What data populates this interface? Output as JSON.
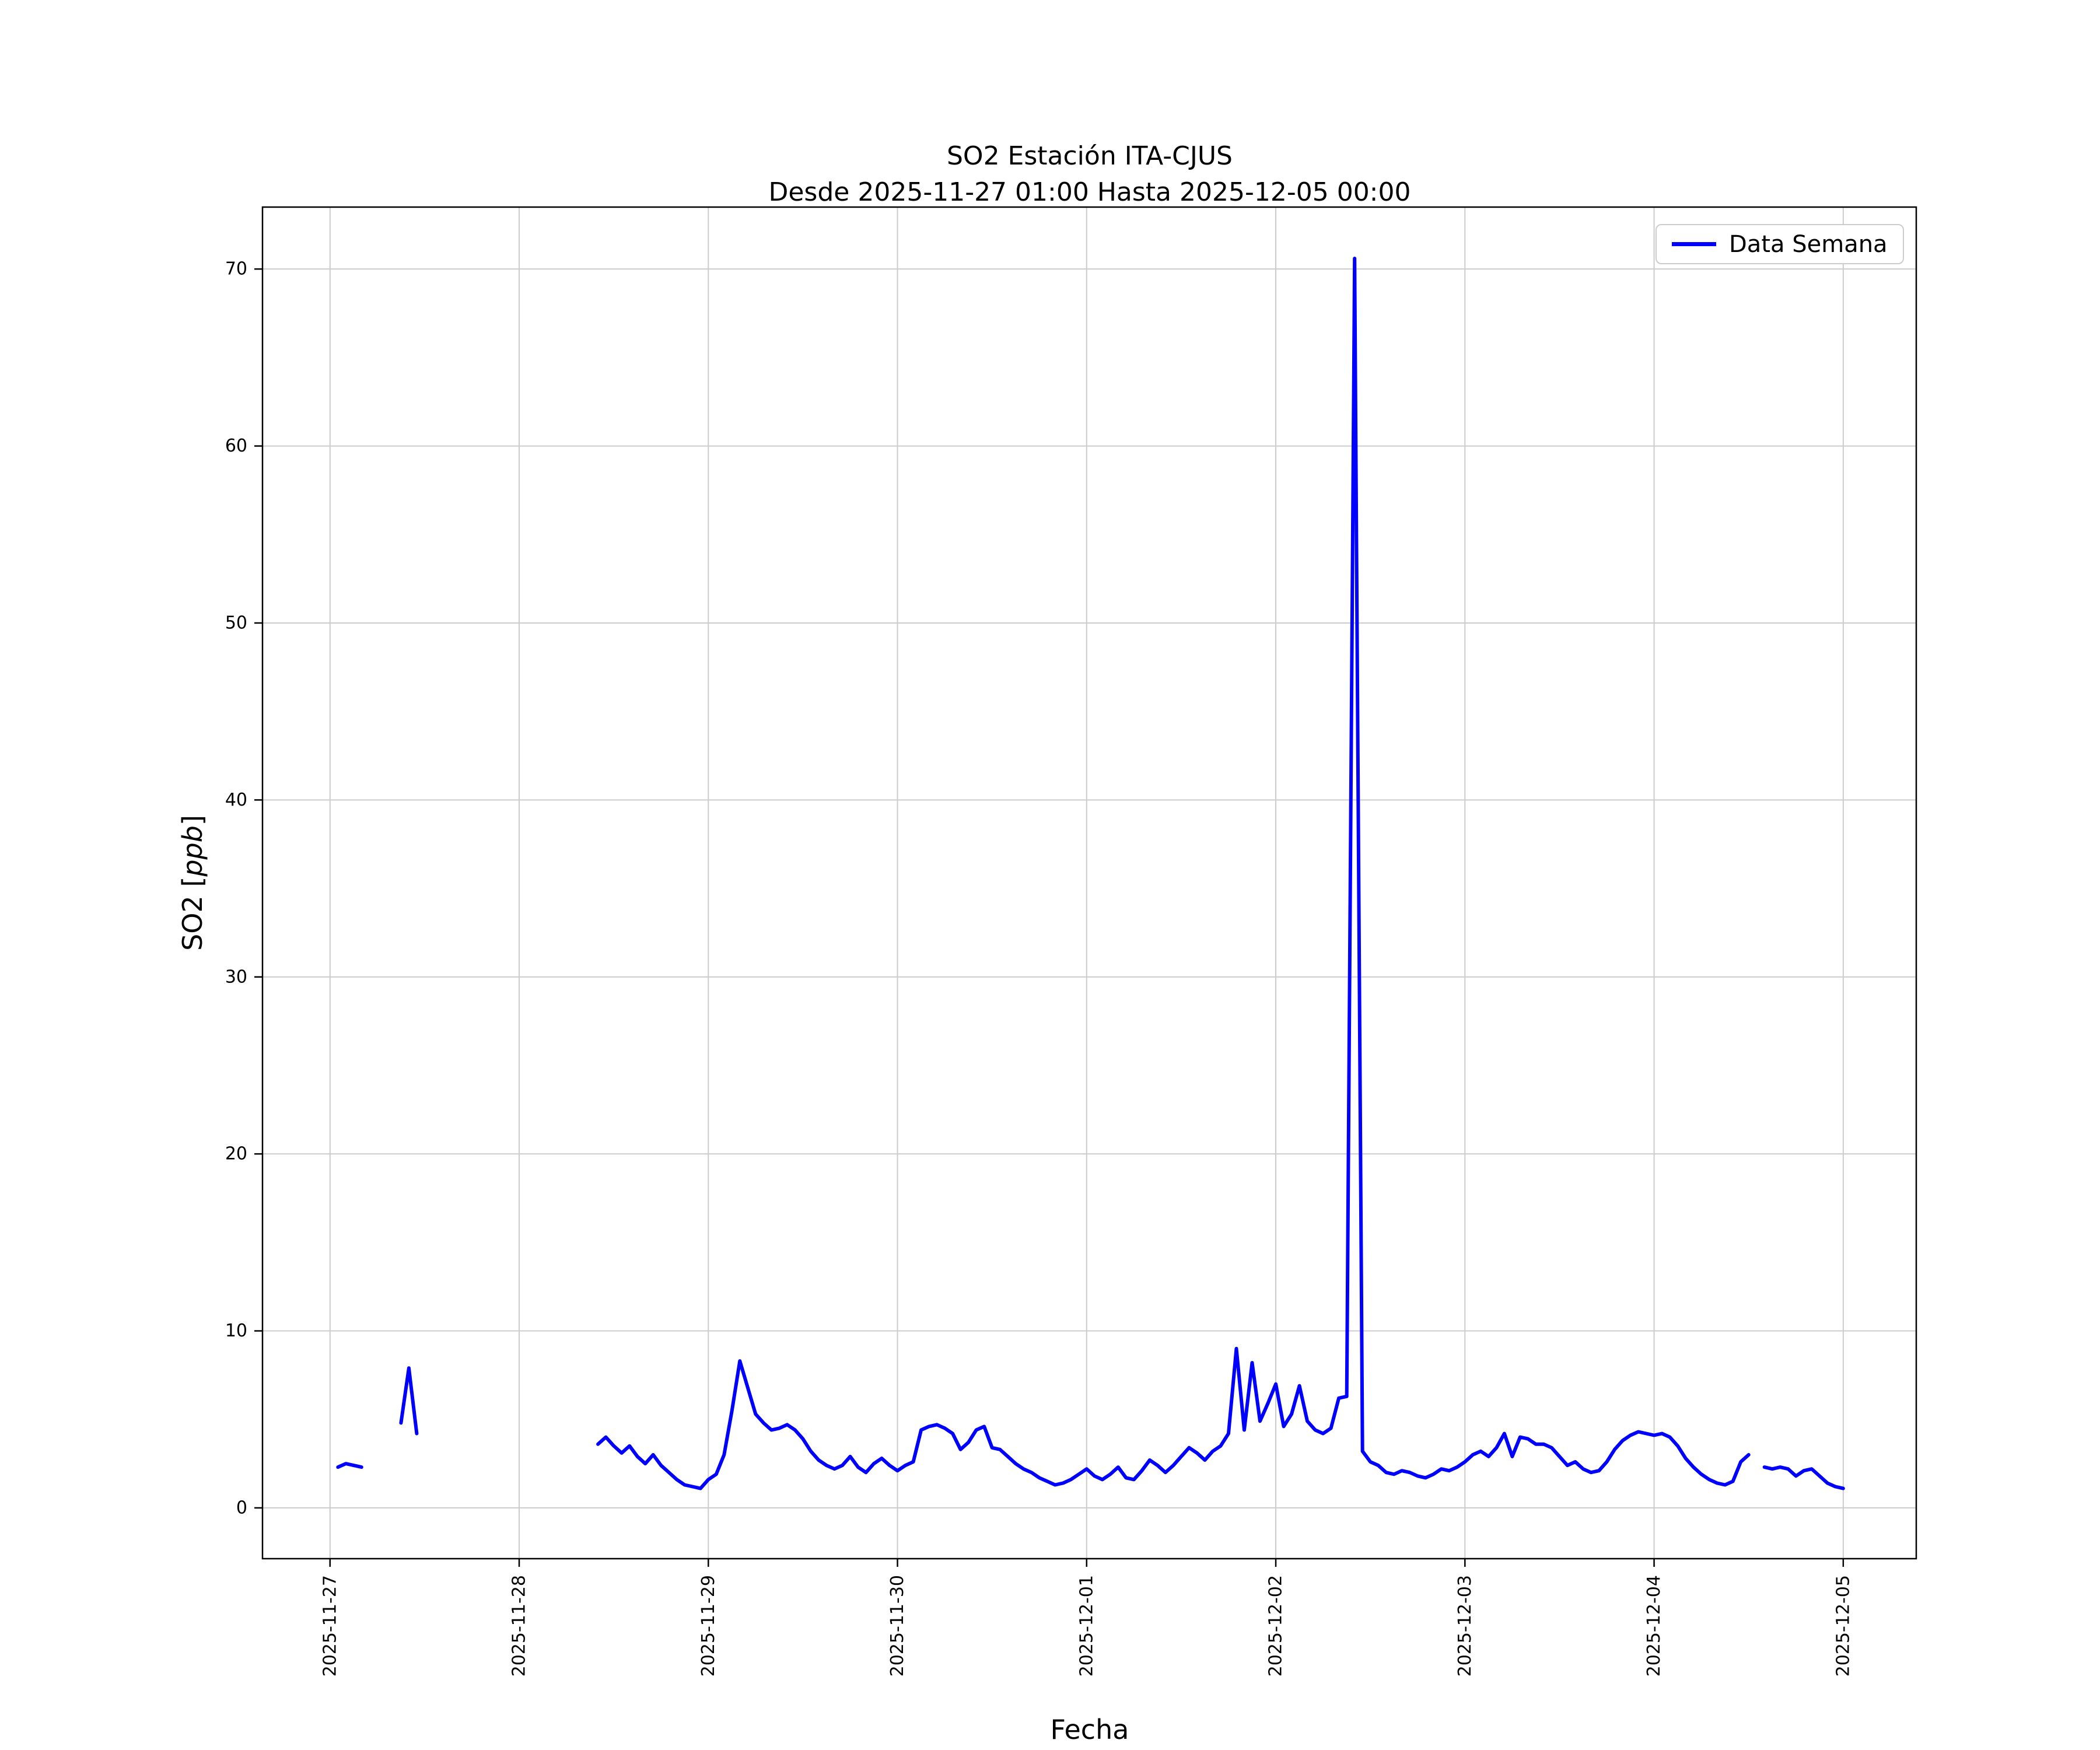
{
  "chart_data": {
    "type": "line",
    "title": "SO2 Estación ITA-CJUS",
    "subtitle": "Desde 2025-11-27 01:00 Hasta 2025-12-05 00:00",
    "xlabel": "Fecha",
    "ylabel": "SO2 [ppb]",
    "ylabel_parts": {
      "prefix": "SO2 [",
      "italic": "ppb",
      "suffix": "]"
    },
    "legend": {
      "label": "Data Semana",
      "position": "upper right"
    },
    "line_color": "#0000ff",
    "grid": true,
    "x_tick_labels": [
      "2025-11-27",
      "2025-11-28",
      "2025-11-29",
      "2025-11-30",
      "2025-12-01",
      "2025-12-02",
      "2025-12-03",
      "2025-12-04",
      "2025-12-05"
    ],
    "x_tick_days": [
      0,
      1,
      2,
      3,
      4,
      5,
      6,
      7,
      8
    ],
    "y_ticks": [
      0,
      10,
      20,
      30,
      40,
      50,
      60,
      70
    ],
    "xlim_days": [
      -0.357,
      8.386
    ],
    "ylim": [
      -2.87,
      73.5
    ],
    "x_epoch": "2025-11-27 00:00",
    "units": "ppb",
    "peak_value": 70.6,
    "peak_time": "2025-12-02 10:00",
    "segments": [
      {
        "start": "2025-11-27 01:00",
        "start_day": 0.04167,
        "interval_hours": 1,
        "values": [
          2.3,
          2.5,
          2.4,
          2.3
        ]
      },
      {
        "start": "2025-11-27 09:00",
        "start_day": 0.375,
        "interval_hours": 1,
        "values": [
          4.8,
          7.9,
          4.2
        ]
      },
      {
        "start": "2025-11-28 10:00",
        "start_day": 1.41667,
        "interval_hours": 1,
        "values": [
          3.6,
          4.0,
          3.5,
          3.1,
          3.5,
          2.9,
          2.5,
          3.0,
          2.4,
          2.0,
          1.6,
          1.3,
          1.2,
          1.1,
          1.6,
          1.9,
          3.0,
          5.5,
          8.3,
          6.8,
          5.3,
          4.8,
          4.4,
          4.5,
          4.7,
          4.4,
          3.9,
          3.2,
          2.7,
          2.4,
          2.2,
          2.4,
          2.9,
          2.3,
          2.0,
          2.5,
          2.8,
          2.4,
          2.1,
          2.4,
          2.6,
          4.4,
          4.6,
          4.7,
          4.5,
          4.2,
          3.3,
          3.7,
          4.4,
          4.6,
          3.4,
          3.3,
          2.9,
          2.5,
          2.2,
          2.0,
          1.7,
          1.5,
          1.3,
          1.4,
          1.6,
          1.9,
          2.2,
          1.8,
          1.6,
          1.9,
          2.3,
          1.7,
          1.6,
          2.1,
          2.7,
          2.4,
          2.0,
          2.4,
          2.9,
          3.4,
          3.1,
          2.7,
          3.2,
          3.5,
          4.2,
          9.0,
          4.4,
          8.2,
          4.9,
          5.9,
          7.0,
          4.6,
          5.3,
          6.9,
          4.9,
          4.4,
          4.2,
          4.5,
          6.2,
          6.3,
          70.6,
          3.2,
          2.6,
          2.4,
          2.0,
          1.9,
          2.1,
          2.0,
          1.8,
          1.7,
          1.9,
          2.2,
          2.1,
          2.3,
          2.6,
          3.0,
          3.2,
          2.9,
          3.4,
          4.2,
          2.9,
          4.0,
          3.9,
          3.6,
          3.6,
          3.4,
          2.9,
          2.4,
          2.6,
          2.2,
          2.0,
          2.1,
          2.6,
          3.3,
          3.8,
          4.1,
          4.3,
          4.2,
          4.1,
          4.2,
          4.0,
          3.5,
          2.8,
          2.3,
          1.9,
          1.6,
          1.4,
          1.3,
          1.5,
          2.6,
          3.0
        ]
      },
      {
        "start": "2025-12-04 14:00",
        "start_day": 7.58333,
        "interval_hours": 1,
        "values": [
          2.3,
          2.2,
          2.3,
          2.2,
          1.8,
          2.1,
          2.2,
          1.8,
          1.4,
          1.2,
          1.1
        ]
      }
    ]
  }
}
